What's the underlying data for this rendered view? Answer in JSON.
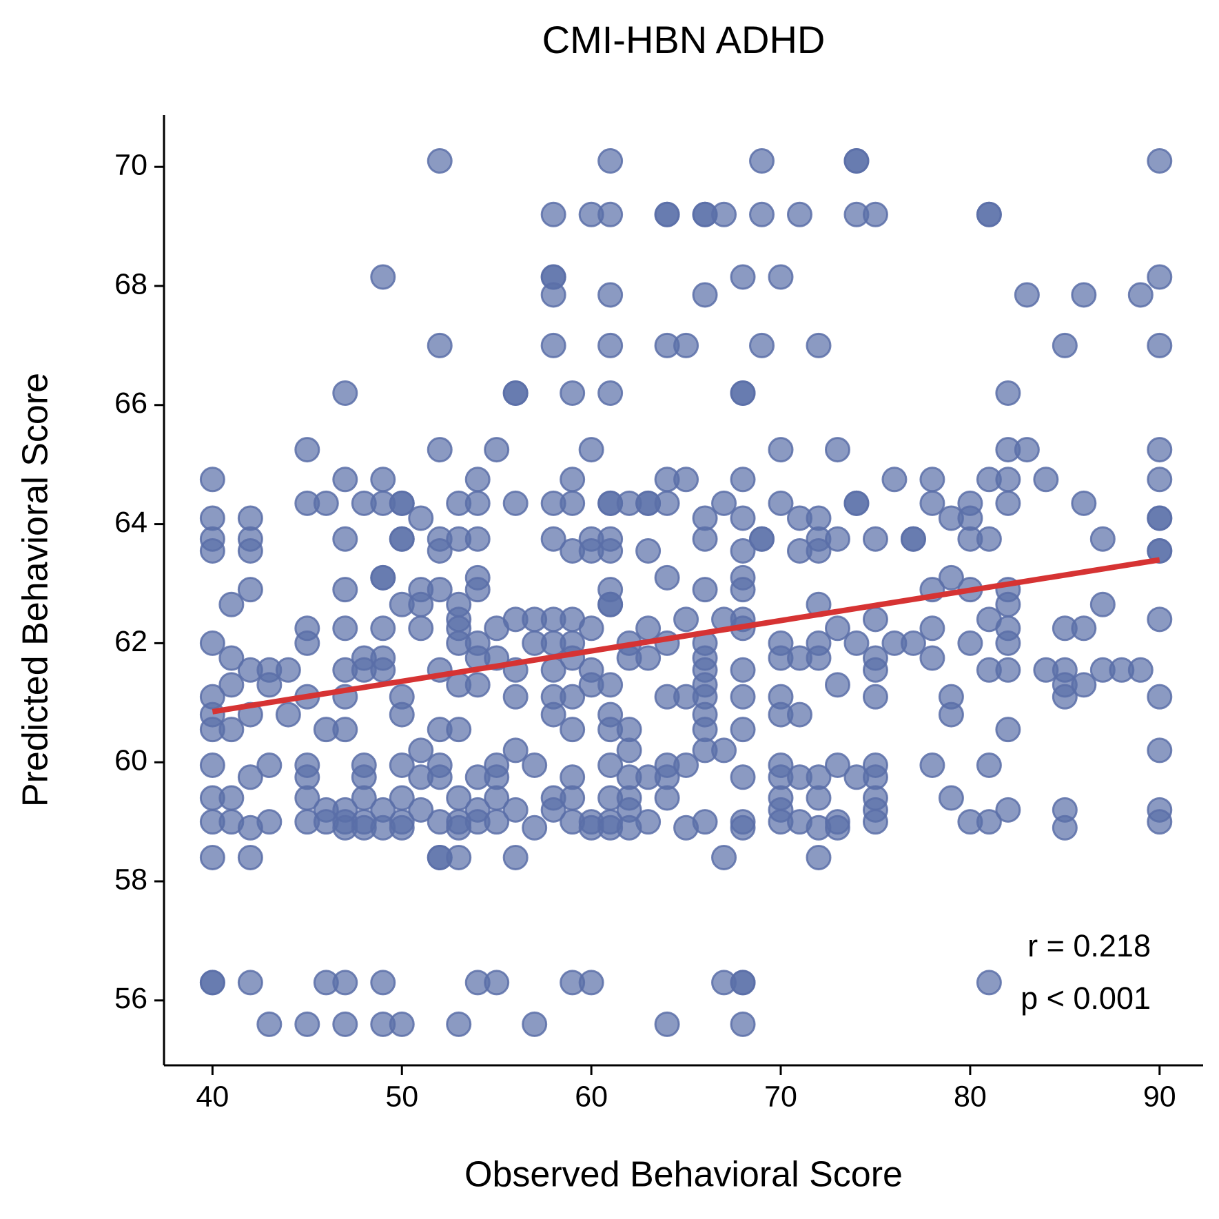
{
  "chart_data": {
    "type": "scatter",
    "title": "CMI-HBN ADHD",
    "x_label": "Observed Behavioral Score",
    "y_label": "Predicted Behavioral Score",
    "annotations": [
      "r = 0.218",
      "p < 0.001"
    ],
    "color": "#5a6fa8",
    "xlim": [
      37.44,
      92.3
    ],
    "ylim": [
      54.91,
      70.87
    ],
    "xticks": [
      40,
      50,
      60,
      70,
      80,
      90
    ],
    "yticks": [
      56,
      58,
      60,
      62,
      64,
      66,
      68,
      70
    ],
    "x": [
      52,
      61,
      69,
      74,
      74,
      90,
      58,
      60,
      61,
      64,
      64,
      66,
      66,
      67,
      69,
      71,
      74,
      75,
      81,
      81,
      49,
      58,
      58,
      68,
      70,
      90,
      58,
      61,
      66,
      83,
      86,
      89,
      52,
      58,
      61,
      64,
      65,
      72,
      69,
      85,
      90,
      47,
      56,
      56,
      59,
      61,
      68,
      68,
      82,
      45,
      52,
      55,
      60,
      70,
      73,
      82,
      83,
      90,
      40,
      47,
      49,
      54,
      59,
      64,
      65,
      68,
      76,
      78,
      81,
      82,
      84,
      90,
      45,
      46,
      48,
      49,
      50,
      50,
      53,
      54,
      56,
      58,
      59,
      61,
      61,
      62,
      63,
      63,
      64,
      67,
      70,
      74,
      74,
      78,
      80,
      82,
      86,
      40,
      42,
      51,
      66,
      68,
      71,
      72,
      79,
      80,
      90,
      90,
      40,
      42,
      47,
      50,
      50,
      52,
      53,
      54,
      58,
      60,
      61,
      66,
      69,
      69,
      72,
      73,
      75,
      77,
      77,
      80,
      81,
      87,
      40,
      42,
      52,
      59,
      60,
      61,
      63,
      68,
      71,
      72,
      90,
      90,
      49,
      49,
      54,
      64,
      68,
      79,
      42,
      47,
      51,
      52,
      54,
      61,
      66,
      68,
      78,
      80,
      82,
      41,
      50,
      51,
      53,
      61,
      61,
      72,
      82,
      87,
      53,
      56,
      57,
      58,
      59,
      65,
      67,
      68,
      75,
      81,
      90,
      45,
      47,
      49,
      51,
      53,
      55,
      60,
      63,
      68,
      73,
      78,
      82,
      85,
      86,
      40,
      45,
      53,
      54,
      57,
      58,
      59,
      62,
      64,
      66,
      70,
      72,
      74,
      76,
      77,
      80,
      82,
      41,
      48,
      49,
      54,
      55,
      59,
      62,
      63,
      66,
      70,
      71,
      72,
      75,
      78,
      42,
      43,
      44,
      47,
      48,
      49,
      52,
      56,
      58,
      60,
      66,
      68,
      75,
      81,
      82,
      84,
      85,
      87,
      88,
      89,
      41,
      43,
      53,
      54,
      60,
      61,
      66,
      73,
      85,
      86,
      40,
      45,
      47,
      50,
      56,
      58,
      59,
      64,
      65,
      66,
      68,
      70,
      75,
      79,
      85,
      90,
      40,
      42,
      44,
      50,
      58,
      61,
      66,
      70,
      71,
      79,
      40,
      41,
      46,
      47,
      52,
      53,
      59,
      61,
      62,
      66,
      68,
      82,
      51,
      56,
      62,
      66,
      67,
      90,
      40,
      43,
      45,
      48,
      50,
      52,
      55,
      57,
      61,
      64,
      65,
      70,
      73,
      75,
      78,
      81,
      42,
      45,
      48,
      51,
      52,
      54,
      55,
      59,
      62,
      63,
      64,
      68,
      70,
      71,
      72,
      74,
      75,
      40,
      41,
      45,
      48,
      50,
      53,
      55,
      58,
      59,
      61,
      62,
      64,
      70,
      72,
      75,
      79,
      46,
      47,
      49,
      51,
      54,
      56,
      58,
      62,
      70,
      75,
      82,
      85,
      90,
      40,
      41,
      43,
      45,
      46,
      47,
      48,
      50,
      52,
      53,
      54,
      55,
      59,
      60,
      61,
      63,
      66,
      68,
      70,
      71,
      73,
      75,
      80,
      81,
      90,
      42,
      47,
      48,
      49,
      50,
      53,
      57,
      60,
      61,
      62,
      65,
      68,
      72,
      73,
      85,
      40,
      42,
      52,
      52,
      53,
      56,
      67,
      72,
      40,
      40,
      42,
      46,
      47,
      49,
      54,
      55,
      59,
      60,
      67,
      68,
      68,
      81,
      43,
      45,
      47,
      49,
      50,
      53,
      57,
      64,
      68
    ],
    "values": [
      70.1,
      70.1,
      70.1,
      70.1,
      70.1,
      70.1,
      69.2,
      69.2,
      69.2,
      69.2,
      69.2,
      69.2,
      69.2,
      69.2,
      69.2,
      69.2,
      69.2,
      69.2,
      69.2,
      69.2,
      68.15,
      68.15,
      68.15,
      68.15,
      68.15,
      68.15,
      67.85,
      67.85,
      67.85,
      67.85,
      67.85,
      67.85,
      67.0,
      67.0,
      67.0,
      67.0,
      67.0,
      67.0,
      67.0,
      67.0,
      67.0,
      66.2,
      66.2,
      66.2,
      66.2,
      66.2,
      66.2,
      66.2,
      66.2,
      65.25,
      65.25,
      65.25,
      65.25,
      65.25,
      65.25,
      65.25,
      65.25,
      65.25,
      64.75,
      64.75,
      64.75,
      64.75,
      64.75,
      64.75,
      64.75,
      64.75,
      64.75,
      64.75,
      64.75,
      64.75,
      64.75,
      64.75,
      64.35,
      64.35,
      64.35,
      64.35,
      64.35,
      64.35,
      64.35,
      64.35,
      64.35,
      64.35,
      64.35,
      64.35,
      64.35,
      64.35,
      64.35,
      64.35,
      64.35,
      64.35,
      64.35,
      64.35,
      64.35,
      64.35,
      64.35,
      64.35,
      64.35,
      64.1,
      64.1,
      64.1,
      64.1,
      64.1,
      64.1,
      64.1,
      64.1,
      64.1,
      64.1,
      64.1,
      63.75,
      63.75,
      63.75,
      63.75,
      63.75,
      63.75,
      63.75,
      63.75,
      63.75,
      63.75,
      63.75,
      63.75,
      63.75,
      63.75,
      63.75,
      63.75,
      63.75,
      63.75,
      63.75,
      63.75,
      63.75,
      63.75,
      63.55,
      63.55,
      63.55,
      63.55,
      63.55,
      63.55,
      63.55,
      63.55,
      63.55,
      63.55,
      63.55,
      63.55,
      63.1,
      63.1,
      63.1,
      63.1,
      63.1,
      63.1,
      62.9,
      62.9,
      62.9,
      62.9,
      62.9,
      62.9,
      62.9,
      62.9,
      62.9,
      62.9,
      62.9,
      62.65,
      62.65,
      62.65,
      62.65,
      62.65,
      62.65,
      62.65,
      62.65,
      62.65,
      62.4,
      62.4,
      62.4,
      62.4,
      62.4,
      62.4,
      62.4,
      62.4,
      62.4,
      62.4,
      62.4,
      62.25,
      62.25,
      62.25,
      62.25,
      62.25,
      62.25,
      62.25,
      62.25,
      62.25,
      62.25,
      62.25,
      62.25,
      62.25,
      62.25,
      62.0,
      62.0,
      62.0,
      62.0,
      62.0,
      62.0,
      62.0,
      62.0,
      62.0,
      62.0,
      62.0,
      62.0,
      62.0,
      62.0,
      62.0,
      62.0,
      62.0,
      61.75,
      61.75,
      61.75,
      61.75,
      61.75,
      61.75,
      61.75,
      61.75,
      61.75,
      61.75,
      61.75,
      61.75,
      61.75,
      61.75,
      61.55,
      61.55,
      61.55,
      61.55,
      61.55,
      61.55,
      61.55,
      61.55,
      61.55,
      61.55,
      61.55,
      61.55,
      61.55,
      61.55,
      61.55,
      61.55,
      61.55,
      61.55,
      61.55,
      61.55,
      61.3,
      61.3,
      61.3,
      61.3,
      61.3,
      61.3,
      61.3,
      61.3,
      61.3,
      61.3,
      61.1,
      61.1,
      61.1,
      61.1,
      61.1,
      61.1,
      61.1,
      61.1,
      61.1,
      61.1,
      61.1,
      61.1,
      61.1,
      61.1,
      61.1,
      61.1,
      60.8,
      60.8,
      60.8,
      60.8,
      60.8,
      60.8,
      60.8,
      60.8,
      60.8,
      60.8,
      60.55,
      60.55,
      60.55,
      60.55,
      60.55,
      60.55,
      60.55,
      60.55,
      60.55,
      60.55,
      60.55,
      60.55,
      60.2,
      60.2,
      60.2,
      60.2,
      60.2,
      60.2,
      59.95,
      59.95,
      59.95,
      59.95,
      59.95,
      59.95,
      59.95,
      59.95,
      59.95,
      59.95,
      59.95,
      59.95,
      59.95,
      59.95,
      59.95,
      59.95,
      59.75,
      59.75,
      59.75,
      59.75,
      59.75,
      59.75,
      59.75,
      59.75,
      59.75,
      59.75,
      59.75,
      59.75,
      59.75,
      59.75,
      59.75,
      59.75,
      59.75,
      59.4,
      59.4,
      59.4,
      59.4,
      59.4,
      59.4,
      59.4,
      59.4,
      59.4,
      59.4,
      59.4,
      59.4,
      59.4,
      59.4,
      59.4,
      59.4,
      59.2,
      59.2,
      59.2,
      59.2,
      59.2,
      59.2,
      59.2,
      59.2,
      59.2,
      59.2,
      59.2,
      59.2,
      59.2,
      59.0,
      59.0,
      59.0,
      59.0,
      59.0,
      59.0,
      59.0,
      59.0,
      59.0,
      59.0,
      59.0,
      59.0,
      59.0,
      59.0,
      59.0,
      59.0,
      59.0,
      59.0,
      59.0,
      59.0,
      59.0,
      59.0,
      59.0,
      59.0,
      59.0,
      58.9,
      58.9,
      58.9,
      58.9,
      58.9,
      58.9,
      58.9,
      58.9,
      58.9,
      58.9,
      58.9,
      58.9,
      58.9,
      58.9,
      58.9,
      58.4,
      58.4,
      58.4,
      58.4,
      58.4,
      58.4,
      58.4,
      58.4,
      56.3,
      56.3,
      56.3,
      56.3,
      56.3,
      56.3,
      56.3,
      56.3,
      56.3,
      56.3,
      56.3,
      56.3,
      56.3,
      56.3,
      55.6,
      55.6,
      55.6,
      55.6,
      55.6,
      55.6,
      55.6,
      55.6,
      55.6
    ],
    "fit_line": {
      "x": [
        40,
        90
      ],
      "values": [
        60.85,
        63.4
      ],
      "color": "#d63333"
    }
  }
}
